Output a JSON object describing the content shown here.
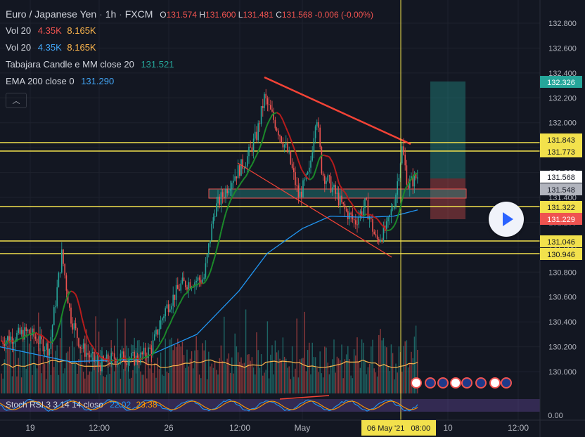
{
  "legend": {
    "symbol": "Euro / Japanese Yen",
    "interval": "1h",
    "exchange": "FXCM",
    "o_label": "O",
    "o": "131.574",
    "h_label": "H",
    "h": "131.600",
    "l_label": "L",
    "l": "131.481",
    "c_label": "C",
    "c": "131.568",
    "change": "-0.006 (-0.00%)",
    "indicators": [
      {
        "name": "Vol 20",
        "v1": "4.35K",
        "v2": "8.165K",
        "c1": "#ef5350",
        "c2": "#ffb74d"
      },
      {
        "name": "Vol 20",
        "v1": "4.35K",
        "v2": "8.165K",
        "c1": "#42a5f5",
        "c2": "#ffb74d"
      },
      {
        "name": "Tabajara Candle e MM close 20",
        "v1": "131.521",
        "c1": "#26a69a"
      },
      {
        "name": "EMA 200 close 0",
        "v1": "131.290",
        "c1": "#42a5f5"
      }
    ],
    "toggle_icon": "chevron-up-icon"
  },
  "rsi_legend": {
    "name": "Stoch RSI 3 3 14 14 close",
    "k": "22.02",
    "d": "23.38"
  },
  "colors": {
    "bg": "#131722",
    "up": "#26a69a",
    "down": "#ef5350",
    "level": "#f2e14c",
    "trend": "#f44336",
    "ema": "#2196f3",
    "text": "#d1d4dc"
  },
  "tags": {
    "t132326": "132.326",
    "t131843": "131.843",
    "t131773": "131.773",
    "t131568": "131.568",
    "t131548": "131.548",
    "t131322": "131.322",
    "t131229": "131.229",
    "t131046": "131.046",
    "t130946": "130.946",
    "rsi_zero": "0.00",
    "crosshair_time": "06 May '21   08:00"
  },
  "ticks": {
    "y_labels": [
      "132.800",
      "132.600",
      "132.400",
      "132.200",
      "132.000",
      "131.800",
      "131.600",
      "131.400",
      "131.200",
      "131.000",
      "130.800",
      "130.600",
      "130.400",
      "130.200",
      "130.000"
    ],
    "x_labels": [
      "19",
      "12:00",
      "26",
      "12:00",
      "May",
      "10",
      "12:00"
    ]
  },
  "chart_data": {
    "type": "candlestick",
    "title": "Euro / Japanese Yen · 1h · FXCM",
    "ylim": [
      129.91,
      132.87
    ],
    "horizontal_levels": [
      131.843,
      131.773,
      131.322,
      131.046,
      130.946
    ],
    "trendlines": [
      {
        "name": "resistance",
        "from": [
          132.35
        ],
        "to": [
          131.82
        ]
      },
      {
        "name": "support",
        "from": [
          131.68
        ],
        "to": [
          130.95
        ]
      }
    ],
    "ema200_last": 131.29,
    "tabajara_ma20_last": 131.521,
    "last_close": 131.568,
    "stoch_rsi": {
      "k": 22.02,
      "d": 23.38
    }
  }
}
